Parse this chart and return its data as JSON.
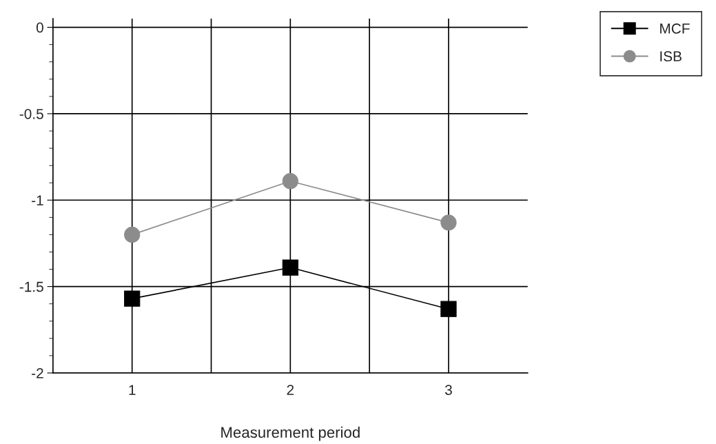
{
  "chart_data": {
    "type": "line",
    "xlabel": "Measurement period",
    "x": [
      1,
      2,
      3
    ],
    "series": [
      {
        "name": "MCF",
        "color": "#000000",
        "marker": "square",
        "values": [
          -1.57,
          -1.39,
          -1.63
        ]
      },
      {
        "name": "ISB",
        "color": "#8c8c8c",
        "marker": "circle",
        "values": [
          -1.2,
          -0.89,
          -1.13
        ]
      }
    ],
    "xlim": [
      0.5,
      3.5
    ],
    "xticks": [
      1,
      {
        "value": 1.5,
        "label": null
      },
      2,
      {
        "value": 2.5,
        "label": null
      },
      3
    ],
    "ylim": [
      -2,
      0.05
    ],
    "yticks": [
      -2,
      -1.5,
      -1,
      -0.5,
      0
    ],
    "grid": true,
    "legend": "top right",
    "line_style": "solid"
  }
}
